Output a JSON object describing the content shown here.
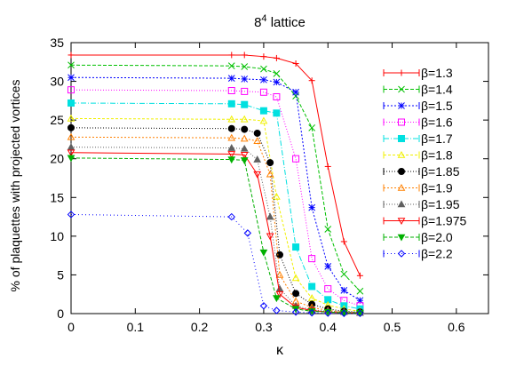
{
  "chart_data": {
    "type": "line",
    "title": "8",
    "title_superscript": "4",
    "title_suffix": " lattice",
    "xlabel": "κ",
    "ylabel": "% of plaquettes with projected vortices",
    "xlim": [
      0,
      0.65
    ],
    "ylim": [
      0,
      35
    ],
    "xticks": [
      0,
      0.1,
      0.2,
      0.3,
      0.4,
      0.5,
      0.6
    ],
    "xtick_labels": [
      "0",
      "0.1",
      "0.2",
      "0.3",
      "0.4",
      "0.5",
      "0.6"
    ],
    "yticks": [
      0,
      5,
      10,
      15,
      20,
      25,
      30,
      35
    ],
    "ytick_labels": [
      "0",
      "5",
      "10",
      "15",
      "20",
      "25",
      "30",
      "35"
    ],
    "grid": false,
    "legend_position": "right",
    "series": [
      {
        "name": "β=1.3",
        "color": "#ff0000",
        "dash": "",
        "marker": "plus",
        "x": [
          0,
          0.25,
          0.27,
          0.3,
          0.32,
          0.35,
          0.375,
          0.4,
          0.425,
          0.45
        ],
        "y": [
          33.4,
          33.4,
          33.4,
          33.2,
          33.0,
          32.3,
          30.1,
          19.0,
          9.3,
          4.9
        ]
      },
      {
        "name": "β=1.4",
        "color": "#00c000",
        "dash": "4,2",
        "marker": "cross",
        "x": [
          0,
          0.25,
          0.27,
          0.3,
          0.32,
          0.35,
          0.375,
          0.4,
          0.425,
          0.45
        ],
        "y": [
          32.1,
          32.0,
          31.9,
          31.6,
          31.0,
          28.1,
          24.0,
          10.9,
          5.1,
          2.9
        ]
      },
      {
        "name": "β=1.5",
        "color": "#0000ff",
        "dash": "2,2",
        "marker": "asterisk",
        "x": [
          0,
          0.25,
          0.27,
          0.3,
          0.32,
          0.35,
          0.375,
          0.4,
          0.425,
          0.45
        ],
        "y": [
          30.5,
          30.4,
          30.3,
          30.2,
          29.9,
          28.6,
          13.7,
          6.1,
          3.0,
          1.7
        ]
      },
      {
        "name": "β=1.6",
        "color": "#ff00ff",
        "dash": "1,2",
        "marker": "square-open",
        "x": [
          0,
          0.25,
          0.27,
          0.3,
          0.32,
          0.35,
          0.375,
          0.4,
          0.425,
          0.45
        ],
        "y": [
          28.9,
          28.8,
          28.7,
          28.6,
          28.0,
          20.0,
          7.1,
          3.2,
          1.7,
          1.0
        ]
      },
      {
        "name": "β=1.7",
        "color": "#00e0e0",
        "dash": "6,2,1,2",
        "marker": "square-filled",
        "x": [
          0,
          0.25,
          0.27,
          0.3,
          0.32,
          0.35,
          0.375,
          0.4,
          0.425,
          0.45
        ],
        "y": [
          27.2,
          27.1,
          27.0,
          26.2,
          25.9,
          8.6,
          3.5,
          1.8,
          1.0,
          0.6
        ]
      },
      {
        "name": "β=1.8",
        "color": "#f0f000",
        "dash": "3,2",
        "marker": "triangle-open",
        "x": [
          0,
          0.25,
          0.27,
          0.3,
          0.32,
          0.35,
          0.375,
          0.4,
          0.425,
          0.45
        ],
        "y": [
          25.2,
          25.1,
          25.1,
          24.9,
          15.1,
          4.6,
          2.0,
          1.1,
          0.6,
          0.3
        ]
      },
      {
        "name": "β=1.85",
        "color": "#000000",
        "dash": "1,2",
        "marker": "circle-filled",
        "x": [
          0,
          0.25,
          0.27,
          0.29,
          0.31,
          0.325,
          0.35,
          0.375,
          0.4,
          0.425,
          0.45
        ],
        "y": [
          24.0,
          23.9,
          23.8,
          23.3,
          19.5,
          7.6,
          2.6,
          1.2,
          0.6,
          0.3,
          0.2
        ]
      },
      {
        "name": "β=1.9",
        "color": "#ff8000",
        "dash": "2,2",
        "marker": "triangle-open",
        "x": [
          0,
          0.25,
          0.27,
          0.29,
          0.31,
          0.325,
          0.35,
          0.375,
          0.4,
          0.425,
          0.45
        ],
        "y": [
          22.8,
          22.7,
          22.6,
          22.3,
          18.0,
          5.0,
          1.6,
          0.8,
          0.4,
          0.2,
          0.1
        ]
      },
      {
        "name": "β=1.95",
        "color": "#606060",
        "dash": "1,2",
        "marker": "triangle-filled",
        "x": [
          0,
          0.25,
          0.27,
          0.29,
          0.31,
          0.325,
          0.35,
          0.375,
          0.4,
          0.425,
          0.45
        ],
        "y": [
          21.5,
          21.4,
          21.3,
          19.9,
          12.5,
          3.2,
          1.0,
          0.5,
          0.3,
          0.2,
          0.1
        ]
      },
      {
        "name": "β=1.975",
        "color": "#ff0000",
        "dash": "",
        "marker": "triangle-down-open",
        "x": [
          0,
          0.25,
          0.27,
          0.29,
          0.31,
          0.325,
          0.35,
          0.375,
          0.4,
          0.425,
          0.45
        ],
        "y": [
          20.8,
          20.6,
          20.5,
          18.0,
          10.0,
          2.5,
          0.8,
          0.4,
          0.2,
          0.1,
          0.1
        ]
      },
      {
        "name": "β=2.0",
        "color": "#00b000",
        "dash": "4,2",
        "marker": "triangle-down-filled",
        "x": [
          0,
          0.25,
          0.27,
          0.3,
          0.32,
          0.35,
          0.375,
          0.4,
          0.425,
          0.45
        ],
        "y": [
          20.1,
          19.9,
          19.8,
          7.9,
          2.0,
          0.6,
          0.3,
          0.2,
          0.1,
          0.1
        ]
      },
      {
        "name": "β=2.2",
        "color": "#0000ff",
        "dash": "1,3",
        "marker": "diamond-open",
        "x": [
          0,
          0.25,
          0.275,
          0.3,
          0.32,
          0.35,
          0.375,
          0.4,
          0.425,
          0.45
        ],
        "y": [
          12.8,
          12.5,
          10.4,
          1.0,
          0.4,
          0.2,
          0.1,
          0.05,
          0.03,
          0.02
        ]
      }
    ]
  }
}
